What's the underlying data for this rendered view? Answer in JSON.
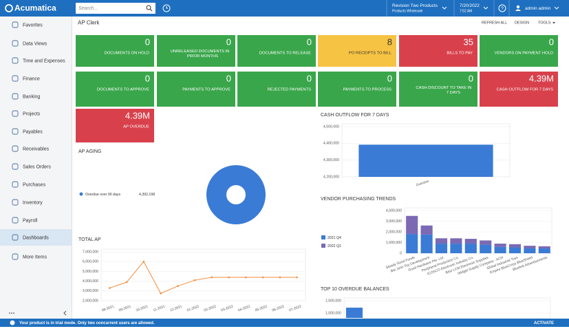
{
  "header": {
    "logo": "Acumatica",
    "search_placeholder": "Search...",
    "company": "Revision Two Products",
    "branch": "Products Wholesale",
    "date": "7/20/2022",
    "time": "7:52 AM",
    "help": "?",
    "user": "admin admin"
  },
  "sidebar": {
    "items": [
      "Favorites",
      "Data Views",
      "Time and Expenses",
      "Finance",
      "Banking",
      "Projects",
      "Payables",
      "Receivables",
      "Sales Orders",
      "Purchases",
      "Inventory",
      "Payroll",
      "Dashboards",
      "More Items"
    ],
    "active_item": 12
  },
  "dashboard": {
    "title": "AP Clerk",
    "actions": [
      "REFRESH ALL",
      "DESIGN",
      "TOOLS"
    ]
  },
  "tiles": [
    {
      "value": 0,
      "label": "DOCUMENTS ON HOLD",
      "color": "#3aa64b"
    },
    {
      "value": 0,
      "label": "UNRELEASED DOCUMENTS IN PRIOR MONTHS",
      "color": "#3aa64b"
    },
    {
      "value": 0,
      "label": "DOCUMENTS TO RELEASE",
      "color": "#3aa64b"
    },
    {
      "value": 8,
      "label": "PO RECEIPTS TO BILL",
      "color": "#f6c343"
    },
    {
      "value": 35,
      "label": "BILLS TO PAY",
      "color": "#d8414c"
    },
    {
      "value": 0,
      "label": "VENDORS ON PAYMENT HOLD",
      "color": "#3aa64b"
    },
    {
      "value": 0,
      "label": "DOCUMENTS TO APPROVE",
      "color": "#3aa64b"
    },
    {
      "value": 0,
      "label": "PAYMENTS TO APPROVE",
      "color": "#3aa64b"
    },
    {
      "value": 0,
      "label": "REJECTED PAYMENTS",
      "color": "#3aa64b"
    },
    {
      "value": 0,
      "label": "PAYMENTS TO PROCESS",
      "color": "#3aa64b"
    },
    {
      "value": 0,
      "label": "CASH DISCOUNT TO TAKE IN 7 DAYS",
      "color": "#3aa64b"
    },
    {
      "value": "4.39M",
      "label": "CASH OUTFLOW FOR 7 DAYS",
      "color": "#d8414c"
    },
    {
      "value": "4.39M",
      "label": "AP OVERDUE",
      "color": "#d8414c"
    }
  ],
  "chart_data": [
    {
      "type": "pie",
      "title": "AP AGING",
      "categories": [
        "Overdue over 90 days"
      ],
      "values": [
        4392198
      ],
      "value_labels": [
        "4,392,198"
      ],
      "colors": [
        "#3a7bd5"
      ]
    },
    {
      "type": "bar",
      "title": "CASH OUTFLOW FOR 7 DAYS",
      "categories": [
        "Overdue"
      ],
      "values": [
        4392198
      ],
      "color": "#3a7bd5",
      "ylim": [
        4200000,
        4500000
      ],
      "yticks": [
        {
          "value": 4200000,
          "label": "4,200,000"
        },
        {
          "value": 4300000,
          "label": "4,300,000"
        },
        {
          "value": 4400000,
          "label": "4,400,000"
        },
        {
          "value": 4500000,
          "label": "4,500,000"
        }
      ],
      "grid": true
    },
    {
      "type": "bar",
      "title": "VENDOR PURCHASING TRENDS",
      "stacked": true,
      "categories": [
        "Steady Good Foods",
        "Bet John Toy Development",
        "Good Hardware Pte. Ltd.",
        "Peripheral Production Co.",
        "ICOSCO Electronic Industry Co.",
        "Best LCM Electronic Supplies",
        "Widget Supply Company - ACH",
        "Global Industrial Toys",
        "Empire BlueCross BlueShield",
        "Bluelink Advertisements"
      ],
      "series": [
        {
          "name": "2021 Q4",
          "color": "#3a7bd5",
          "values": [
            1800000,
            1750000,
            900000,
            900000,
            900000,
            800000,
            600000,
            550000,
            450000,
            450000
          ]
        },
        {
          "name": "2022 Q1",
          "color": "#7b69b4",
          "values": [
            1700000,
            850000,
            500000,
            500000,
            450000,
            400000,
            300000,
            300000,
            250000,
            200000
          ]
        }
      ],
      "ylim": [
        0,
        4000000
      ],
      "yticks": [
        0,
        {
          "value": 1000000,
          "label": "1,000,000"
        },
        {
          "value": 2000000,
          "label": "2,000,000"
        },
        {
          "value": 3000000,
          "label": "3,000,000"
        },
        {
          "value": 4000000,
          "label": "4,000,000"
        }
      ],
      "grid": true
    },
    {
      "type": "line",
      "title": "TOTAL AP",
      "categories": [
        "08-2021",
        "09-2021",
        "10-2021",
        "11-2021",
        "12-2021",
        "01-2022",
        "02-2022",
        "03-2022",
        "04-2022",
        "05-2022",
        "06-2022",
        "07-2022"
      ],
      "values": [
        3300000,
        3900000,
        6000000,
        2750000,
        3500000,
        4100000,
        4392198,
        4392198,
        4392198,
        4392198,
        4392198,
        4392198
      ],
      "color": "#f28b3b",
      "ylim": [
        2000000,
        7000000
      ],
      "yticks": [
        {
          "value": 2000000,
          "label": "2,000,000"
        },
        {
          "value": 3000000,
          "label": "3,000,000"
        },
        {
          "value": 4000000,
          "label": "4,000,000"
        },
        {
          "value": 5000000,
          "label": "5,000,000"
        },
        {
          "value": 6000000,
          "label": "6,000,000"
        },
        {
          "value": 7000000,
          "label": "7,000,000"
        }
      ],
      "grid": true
    },
    {
      "type": "bar",
      "title": "TOP 10 OVERDUE BALANCES",
      "categories": [
        null
      ],
      "values": [
        1220000
      ],
      "color": "#3a7bd5",
      "ylim": [
        1000000,
        1500000
      ],
      "yticks": [
        {
          "value": 1000000,
          "label": "1,000,000"
        },
        {
          "value": 1500000,
          "label": "1,500,000"
        }
      ],
      "grid": true
    }
  ],
  "footer": {
    "message": "Your product is in trial mode. Only two concurrent users are allowed.",
    "action": "ACTIVATE"
  }
}
